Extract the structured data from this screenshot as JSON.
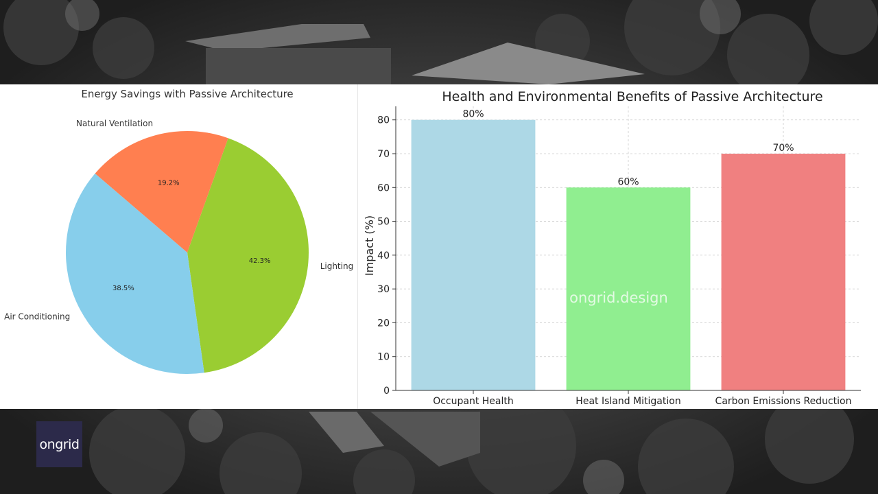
{
  "brand": {
    "logo_text": "ongrid",
    "watermark": "ongrid.design"
  },
  "chart_data": [
    {
      "type": "pie",
      "title": "Energy Savings with Passive Architecture",
      "slices": [
        {
          "label": "Lighting",
          "value": 42.3,
          "pct_label": "42.3%",
          "color": "#9acd32"
        },
        {
          "label": "Air Conditioning",
          "value": 38.5,
          "pct_label": "38.5%",
          "color": "#87ceeb"
        },
        {
          "label": "Natural Ventilation",
          "value": 19.2,
          "pct_label": "19.2%",
          "color": "#ff7f50"
        }
      ]
    },
    {
      "type": "bar",
      "title": "Health and Environmental Benefits of Passive Architecture",
      "ylabel": "Impact (%)",
      "xlabel": "",
      "ylim": [
        0,
        84
      ],
      "yticks": [
        0,
        10,
        20,
        30,
        40,
        50,
        60,
        70,
        80
      ],
      "grid": true,
      "categories": [
        "Occupant Health",
        "Heat Island Mitigation",
        "Carbon Emissions Reduction"
      ],
      "values": [
        80,
        60,
        70
      ],
      "value_labels": [
        "80%",
        "60%",
        "70%"
      ],
      "colors": [
        "#add8e6",
        "#90ee90",
        "#f08080"
      ]
    }
  ]
}
